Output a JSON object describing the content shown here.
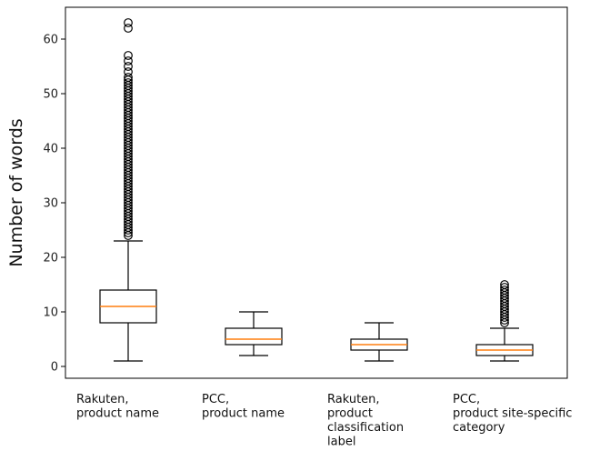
{
  "chart_data": {
    "type": "boxplot",
    "title": "",
    "xlabel": "",
    "ylabel": "Number of words",
    "ylim": [
      -2,
      66
    ],
    "yticks": [
      0,
      10,
      20,
      30,
      40,
      50,
      60
    ],
    "grid": false,
    "colors": {
      "box": "#000000",
      "median": "#ff7f0e",
      "flier": "#000000"
    },
    "categories": [
      [
        "Rakuten,",
        "product name"
      ],
      [
        "PCC,",
        "product name"
      ],
      [
        "Rakuten,",
        "product",
        "classification",
        "label"
      ],
      [
        "PCC,",
        "product site-specific",
        "category"
      ]
    ],
    "boxes": [
      {
        "whislo": 1,
        "q1": 8,
        "median": 11,
        "q3": 14,
        "whishi": 23,
        "fliers": [
          24,
          24.5,
          25,
          25.5,
          26,
          26.5,
          27,
          27.5,
          28,
          28.5,
          29,
          29.5,
          30,
          30.5,
          31,
          31.5,
          32,
          32.5,
          33,
          33.5,
          34,
          34.5,
          35,
          35.5,
          36,
          36.5,
          37,
          37.5,
          38,
          38.5,
          39,
          39.5,
          40,
          40.5,
          41,
          41.5,
          42,
          42.5,
          43,
          43.5,
          44,
          44.5,
          45,
          45.5,
          46,
          46.5,
          47,
          47.5,
          48,
          48.5,
          49,
          49.5,
          50,
          50.5,
          51,
          51.5,
          52,
          52.5,
          53,
          54,
          55,
          56,
          57,
          62,
          63
        ]
      },
      {
        "whislo": 2,
        "q1": 4,
        "median": 5,
        "q3": 7,
        "whishi": 10,
        "fliers": []
      },
      {
        "whislo": 1,
        "q1": 3,
        "median": 4,
        "q3": 5,
        "whishi": 8,
        "fliers": []
      },
      {
        "whislo": 1,
        "q1": 2,
        "median": 3,
        "q3": 4,
        "whishi": 7,
        "fliers": [
          8,
          8.5,
          9,
          9.5,
          10,
          10.5,
          11,
          11.5,
          12,
          12.5,
          13,
          13.5,
          14,
          14.5,
          15
        ]
      }
    ]
  }
}
